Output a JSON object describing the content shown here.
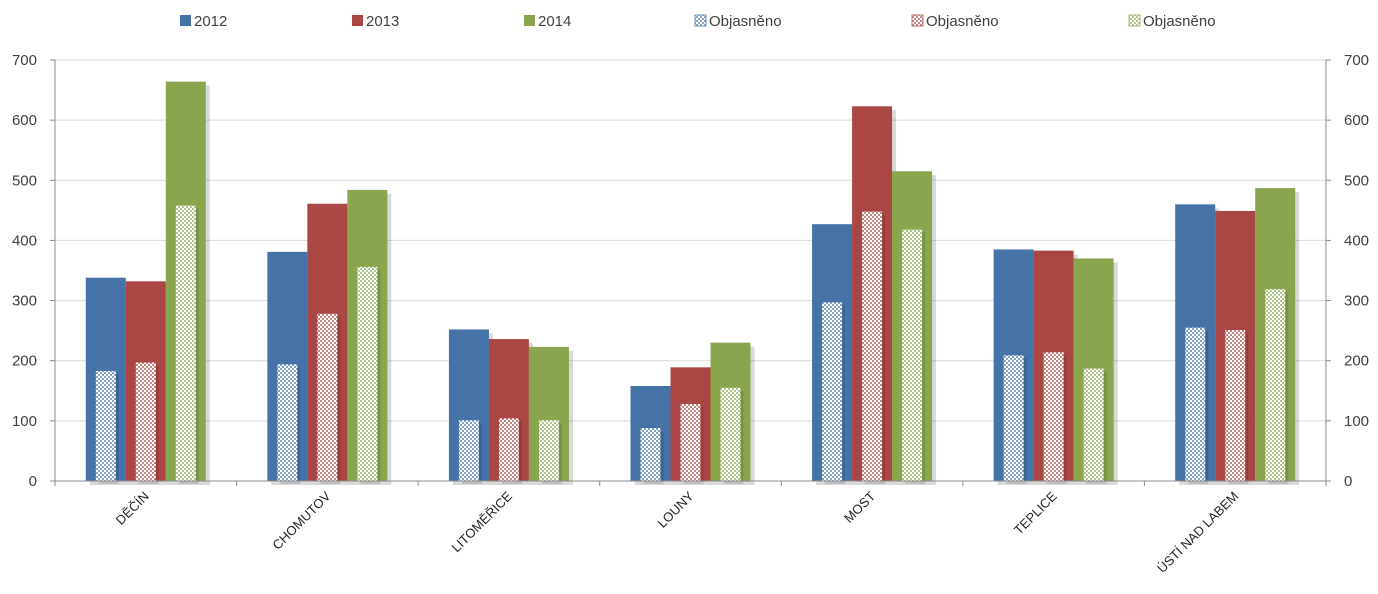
{
  "chart_data": {
    "type": "bar",
    "categories": [
      "DĚČÍN",
      "CHOMUTOV",
      "LITOMĚŘICE",
      "LOUNY",
      "MOST",
      "TEPLICE",
      "ÚSTÍ NAD LABEM"
    ],
    "series": [
      {
        "name": "2012",
        "values": [
          338,
          381,
          252,
          158,
          427,
          385,
          460
        ],
        "color": "#4572a7"
      },
      {
        "name": "2013",
        "values": [
          332,
          461,
          236,
          189,
          623,
          383,
          449
        ],
        "color": "#aa4643"
      },
      {
        "name": "2014",
        "values": [
          664,
          484,
          223,
          230,
          515,
          370,
          487
        ],
        "color": "#89a54e"
      }
    ],
    "overlay_series": [
      {
        "name": "Objasněno",
        "values": [
          183,
          194,
          101,
          88,
          297,
          209,
          255
        ],
        "color": "#4572a7",
        "pattern": "checkered"
      },
      {
        "name": "Objasněno",
        "values": [
          197,
          278,
          104,
          128,
          448,
          214,
          251
        ],
        "color": "#aa4643",
        "pattern": "checkered"
      },
      {
        "name": "Objasněno",
        "values": [
          458,
          356,
          101,
          155,
          418,
          187,
          319
        ],
        "color": "#89a54e",
        "pattern": "checkered"
      }
    ],
    "ylim": [
      0,
      700
    ],
    "y2lim": [
      0,
      700
    ],
    "yticks": [
      "0",
      "100",
      "200",
      "300",
      "400",
      "500",
      "600",
      "700"
    ],
    "grid": true,
    "legend_position": "top"
  }
}
